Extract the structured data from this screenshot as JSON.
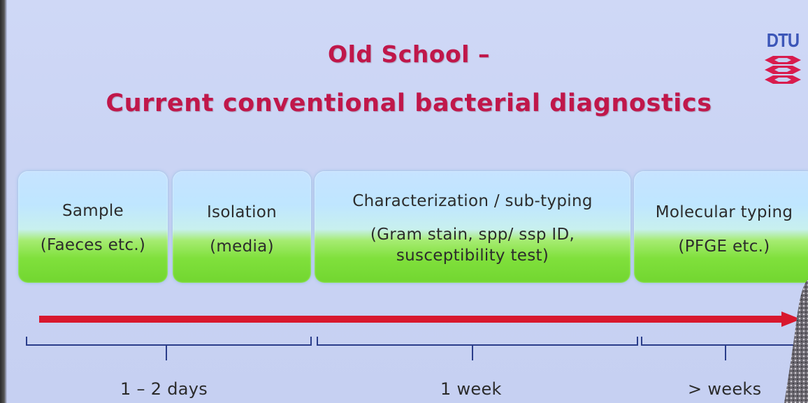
{
  "slide": {
    "title_line1": "Old School –",
    "title_line2": "Current conventional bacterial diagnostics",
    "logo": {
      "text": "DTU",
      "color": "#3c56b8"
    },
    "title_color": "#c0174a",
    "arrow_color": "#d8182e",
    "steps": [
      {
        "name": "Sample",
        "detail": "(Faeces etc.)"
      },
      {
        "name": "Isolation",
        "detail": "(media)"
      },
      {
        "name": "Characterization / sub-typing",
        "detail_line1": "(Gram stain, spp/ ssp ID,",
        "detail_line2": "susceptibility test)"
      },
      {
        "name": "Molecular typing",
        "detail": "(PFGE etc.)"
      }
    ],
    "durations": [
      "1 – 2 days",
      "1 week",
      "> weeks"
    ]
  }
}
